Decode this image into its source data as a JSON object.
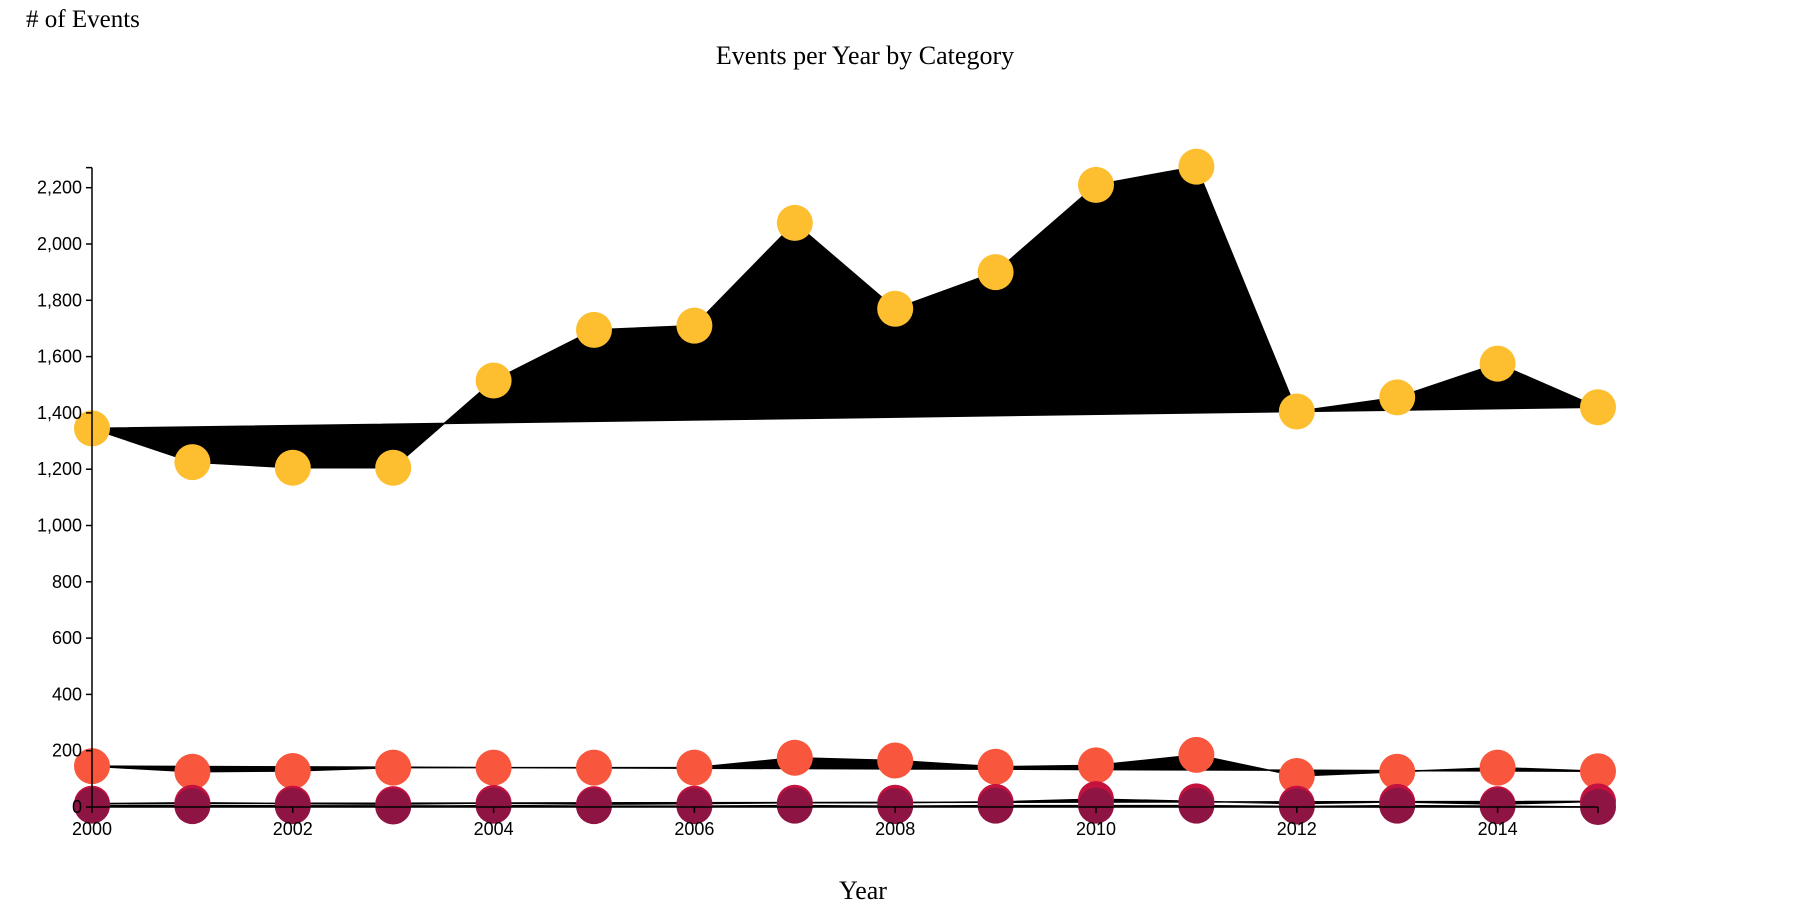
{
  "chart_data": {
    "type": "line",
    "title": "Events per Year by Category",
    "xlabel": "Year",
    "ylabel": "# of Events",
    "x": [
      2000,
      2001,
      2002,
      2003,
      2004,
      2005,
      2006,
      2007,
      2008,
      2009,
      2010,
      2011,
      2012,
      2013,
      2014,
      2015
    ],
    "xlim": [
      2000,
      2015
    ],
    "ylim": [
      0,
      2250
    ],
    "x_ticks": [
      "2000",
      "2002",
      "2004",
      "2006",
      "2008",
      "2010",
      "2012",
      "2014"
    ],
    "y_ticks": [
      "0",
      "200",
      "400",
      "600",
      "800",
      "1,000",
      "1,200",
      "1,400",
      "1,600",
      "1,800",
      "2,000",
      "2,200"
    ],
    "y_tick_values": [
      0,
      200,
      400,
      600,
      800,
      1000,
      1200,
      1400,
      1600,
      1800,
      2000,
      2200
    ],
    "grid": false,
    "series": [
      {
        "color": "#fdbe30",
        "values": [
          1345,
          1225,
          1205,
          1205,
          1515,
          1695,
          1710,
          2075,
          1770,
          1900,
          2210,
          2275,
          1405,
          1455,
          1575,
          1420
        ]
      },
      {
        "color": "#f9573d",
        "values": [
          145,
          125,
          128,
          140,
          140,
          140,
          140,
          175,
          165,
          143,
          148,
          185,
          110,
          125,
          140,
          127
        ]
      },
      {
        "color": "#c4123f",
        "values": [
          12,
          15,
          12,
          10,
          14,
          10,
          12,
          15,
          15,
          18,
          28,
          20,
          12,
          18,
          10,
          20
        ]
      },
      {
        "color": "#8e1443",
        "values": [
          5,
          3,
          3,
          2,
          5,
          3,
          3,
          5,
          3,
          5,
          5,
          5,
          2,
          5,
          3,
          0
        ]
      }
    ]
  }
}
